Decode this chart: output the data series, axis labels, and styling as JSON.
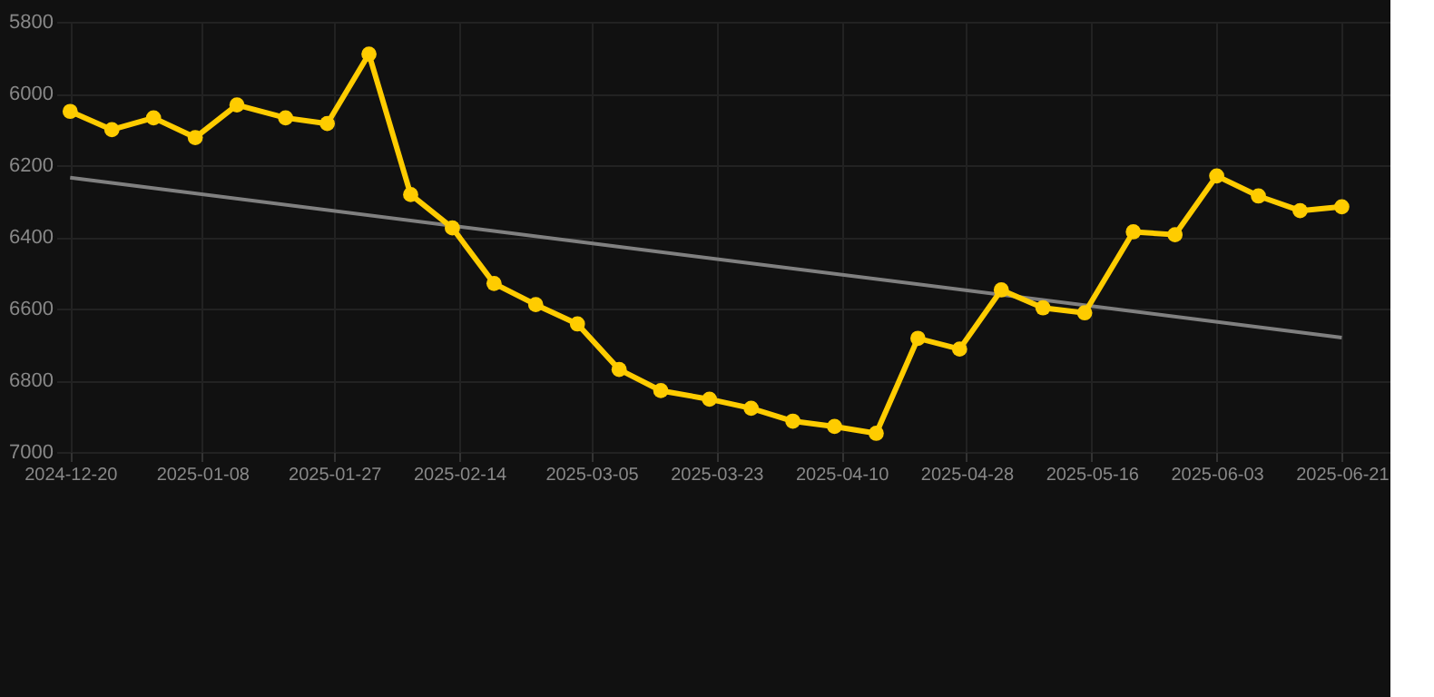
{
  "chart_data": {
    "type": "line",
    "marker": "circle",
    "grid": true,
    "x": [
      "2024-12-20",
      "2024-12-26",
      "2025-01-01",
      "2025-01-07",
      "2025-01-13",
      "2025-01-20",
      "2025-01-26",
      "2025-02-01",
      "2025-02-07",
      "2025-02-13",
      "2025-02-19",
      "2025-02-25",
      "2025-03-03",
      "2025-03-09",
      "2025-03-15",
      "2025-03-22",
      "2025-03-28",
      "2025-04-03",
      "2025-04-09",
      "2025-04-15",
      "2025-04-21",
      "2025-04-27",
      "2025-05-03",
      "2025-05-09",
      "2025-05-15",
      "2025-05-22",
      "2025-05-28",
      "2025-06-03",
      "2025-06-09",
      "2025-06-15",
      "2025-06-21"
    ],
    "series": [
      {
        "color": "#ffcc00",
        "values": [
          6050,
          6101,
          6068,
          6123,
          6032,
          6068,
          6084,
          5890,
          6282,
          6375,
          6530,
          6589,
          6643,
          6770,
          6829,
          6853,
          6878,
          6914,
          6929,
          6948,
          6683,
          6713,
          6548,
          6598,
          6612,
          6386,
          6394,
          6230,
          6286,
          6327,
          6316
        ]
      },
      {
        "type": "line",
        "marker": "none",
        "color": "#808080",
        "x": [
          "2024-12-20",
          "2025-06-21"
        ],
        "values": [
          6235,
          6681
        ]
      }
    ],
    "xlim": [
      "2024-12-18",
      "2025-06-28"
    ],
    "xticks": [
      "2024-12-20",
      "2025-01-08",
      "2025-01-27",
      "2025-02-14",
      "2025-03-05",
      "2025-03-23",
      "2025-04-10",
      "2025-04-28",
      "2025-05-16",
      "2025-06-03",
      "2025-06-21"
    ],
    "ylim": [
      7000,
      5800
    ],
    "yticks": [
      5800,
      6000,
      6200,
      6400,
      6600,
      6800,
      7000
    ]
  }
}
